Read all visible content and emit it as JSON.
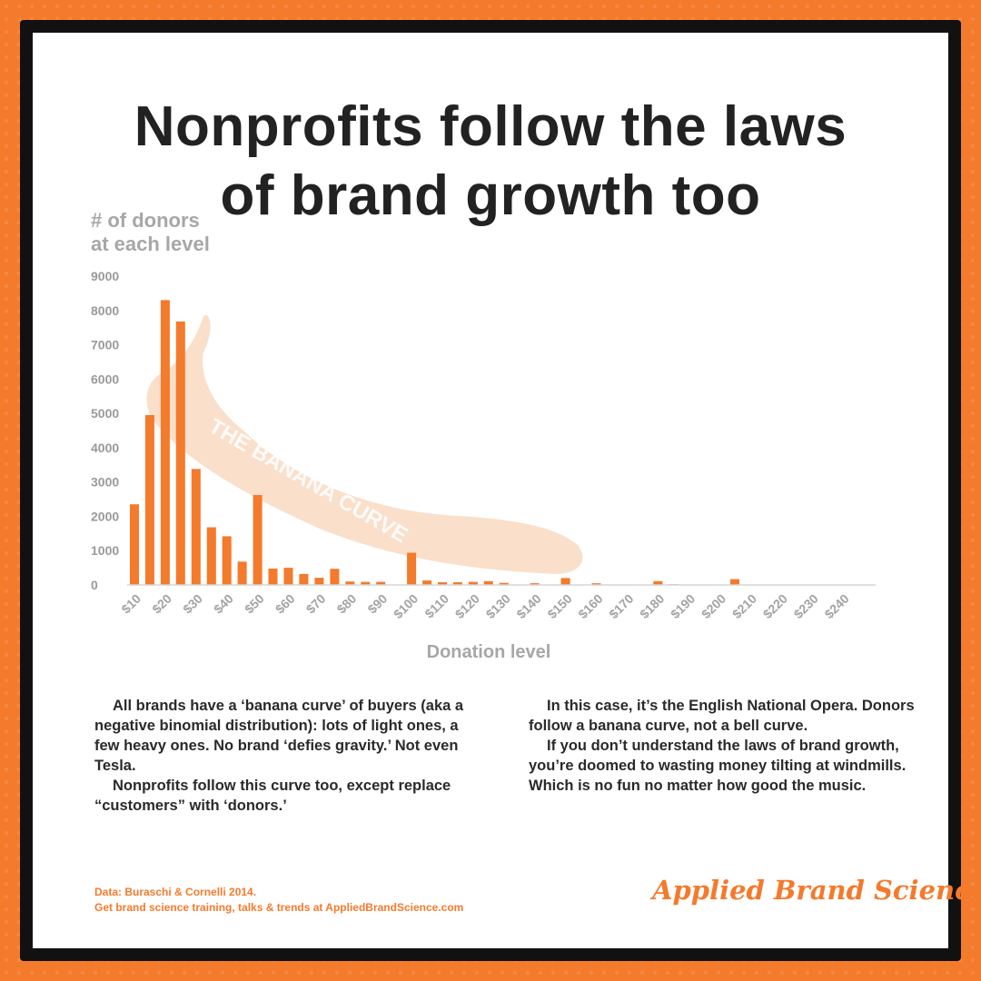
{
  "title": {
    "line1": "Nonprofits follow the laws",
    "line2": "of brand growth too"
  },
  "chart_data": {
    "type": "bar",
    "title": "Nonprofits follow the laws of brand growth too",
    "ylabel": [
      "# of donors",
      "at each level"
    ],
    "xlabel": "Donation level",
    "ylim": [
      0,
      9000
    ],
    "yticks": [
      0,
      1000,
      2000,
      3000,
      4000,
      5000,
      6000,
      7000,
      8000,
      9000
    ],
    "xtick_labels": [
      "$10",
      "$20",
      "$30",
      "$40",
      "$50",
      "$60",
      "$70",
      "$80",
      "$90",
      "$100",
      "$110",
      "$120",
      "$130",
      "$140",
      "$150",
      "$160",
      "$170",
      "$180",
      "$190",
      "$200",
      "$210",
      "$220",
      "$230",
      "$240"
    ],
    "categories": [
      10,
      15,
      20,
      25,
      30,
      35,
      40,
      45,
      50,
      55,
      60,
      65,
      70,
      75,
      80,
      85,
      90,
      95,
      100,
      105,
      110,
      115,
      120,
      125,
      130,
      135,
      140,
      145,
      150,
      155,
      160,
      165,
      170,
      175,
      180,
      185,
      190,
      195,
      200,
      205,
      210,
      215,
      220,
      225,
      230,
      235,
      240,
      245
    ],
    "values": [
      2350,
      4950,
      8300,
      7680,
      3380,
      1680,
      1420,
      680,
      2620,
      480,
      500,
      320,
      210,
      470,
      100,
      90,
      90,
      0,
      940,
      130,
      80,
      80,
      90,
      110,
      60,
      0,
      50,
      0,
      200,
      0,
      50,
      0,
      0,
      0,
      110,
      20,
      0,
      0,
      0,
      170,
      0,
      0,
      0,
      0,
      0,
      0,
      0,
      0
    ],
    "annotation": "THE BANANA CURVE",
    "bar_color": "#f47a2c",
    "grid": false
  },
  "text": {
    "left_p1": "All brands have a ‘banana curve’ of buyers (aka a negative binomial distribution): lots of light ones, a few heavy ones. No brand ‘defies gravity.’ Not even Tesla.",
    "left_p2": "Nonprofits follow this curve too, except replace “customers” with ‘donors.’",
    "right_p1": "In this case, it’s the English National Opera. Donors follow a banana curve, not a bell curve.",
    "right_p2": "If you don’t understand the laws of brand growth, you’re doomed to wasting money tilting at windmills. Which is no fun no matter how good the music."
  },
  "footnote": {
    "line1": "Data: Buraschi & Cornelli 2014.",
    "line2": "Get brand science training, talks & trends at AppliedBrandScience.com"
  },
  "logo": {
    "text": "Applied Brand Science",
    "icon": "deer-icon",
    "color": "#f47a2c"
  },
  "colors": {
    "accent": "#f47a2c",
    "banana": "#f9d9c1",
    "frame": "#111111"
  }
}
